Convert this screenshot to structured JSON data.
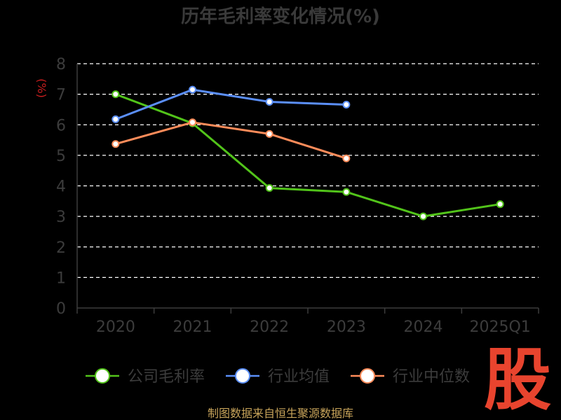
{
  "chart_data": {
    "type": "line",
    "title": "历年毛利率变化情况(%)",
    "ylabel": "(%)",
    "categories": [
      "2020",
      "2021",
      "2022",
      "2023",
      "2024",
      "2025Q1"
    ],
    "ylim": [
      0,
      8
    ],
    "yticks": [
      0,
      1,
      2,
      3,
      4,
      5,
      6,
      7,
      8
    ],
    "grid": true,
    "legend_position": "bottom",
    "series": [
      {
        "name": "公司毛利率",
        "color": "#52c41a",
        "values": [
          7.0,
          6.05,
          3.93,
          3.8,
          3.0,
          3.4
        ]
      },
      {
        "name": "行业均值",
        "color": "#5b8ff9",
        "values": [
          6.18,
          7.15,
          6.75,
          6.66,
          null,
          null
        ]
      },
      {
        "name": "行业中位数",
        "color": "#ff8c5a",
        "values": [
          5.37,
          6.08,
          5.7,
          4.9,
          null,
          null
        ]
      }
    ]
  },
  "source_text": "制图数据来自恒生聚源数据库",
  "logo_text": "股"
}
